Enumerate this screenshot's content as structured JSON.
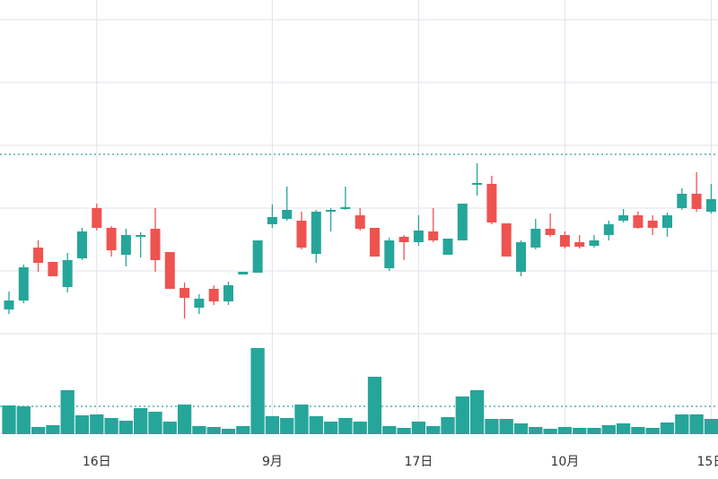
{
  "chart_data": {
    "type": "candlestick",
    "categories": [
      null,
      null,
      null,
      null,
      null,
      null,
      "16日",
      null,
      null,
      null,
      null,
      null,
      null,
      null,
      null,
      null,
      null,
      null,
      "9月",
      null,
      null,
      null,
      null,
      null,
      null,
      null,
      null,
      null,
      "17日",
      null,
      null,
      null,
      null,
      null,
      null,
      null,
      null,
      null,
      "10月",
      null,
      null,
      null,
      null,
      null,
      null,
      null,
      null,
      null,
      "15日"
    ],
    "open": [
      155,
      165,
      224,
      208,
      180,
      212,
      268,
      246,
      216,
      236,
      245,
      219,
      179,
      157,
      178,
      164,
      194,
      196,
      250,
      256,
      254,
      217,
      264,
      267,
      260,
      246,
      201,
      236,
      230,
      242,
      216,
      232,
      294,
      295,
      251,
      197,
      224,
      245,
      238,
      230,
      226,
      238,
      254,
      260,
      254,
      246,
      268,
      284,
      264
    ],
    "close": [
      165,
      202,
      207,
      192,
      210,
      242,
      246,
      221,
      238,
      238,
      210,
      178,
      168,
      167,
      164,
      182,
      197,
      232,
      258,
      266,
      224,
      264,
      266,
      269,
      245,
      214,
      232,
      230,
      243,
      232,
      234,
      273,
      296,
      252,
      214,
      230,
      245,
      238,
      225,
      225,
      232,
      250,
      260,
      246,
      246,
      260,
      284,
      267,
      278
    ],
    "high": [
      175,
      205,
      232,
      208,
      218,
      246,
      273,
      248,
      245,
      241,
      268,
      219,
      185,
      172,
      182,
      186,
      197,
      232,
      272,
      292,
      264,
      266,
      268,
      292,
      268,
      246,
      235,
      238,
      260,
      268,
      234,
      273,
      318,
      304,
      251,
      232,
      256,
      262,
      242,
      238,
      238,
      254,
      267,
      264,
      260,
      263,
      290,
      308,
      295
    ],
    "low": [
      150,
      162,
      197,
      192,
      174,
      210,
      243,
      214,
      203,
      213,
      197,
      178,
      145,
      150,
      160,
      160,
      194,
      196,
      246,
      254,
      222,
      207,
      242,
      266,
      243,
      214,
      198,
      210,
      226,
      230,
      216,
      232,
      282,
      250,
      214,
      192,
      222,
      236,
      223,
      223,
      224,
      232,
      252,
      245,
      238,
      236,
      266,
      264,
      262
    ],
    "volume": [
      32,
      31,
      8,
      10,
      49,
      21,
      22,
      18,
      15,
      29,
      25,
      14,
      33,
      9,
      8,
      6,
      9,
      96,
      20,
      18,
      33,
      20,
      14,
      18,
      14,
      64,
      9,
      7,
      14,
      9,
      19,
      42,
      49,
      17,
      17,
      12,
      8,
      6,
      8,
      7,
      7,
      10,
      12,
      8,
      7,
      13,
      22,
      22,
      17
    ],
    "up_color": "#26a69a",
    "down_color": "#ef5350",
    "volume_color": "#26a69a",
    "ylim": [
      100,
      500
    ],
    "ygrid": [
      478,
      408,
      338,
      268,
      198,
      128
    ],
    "volume_lim": [
      0,
      100
    ],
    "price_line": 328,
    "volume_line": 31,
    "grid": true
  }
}
